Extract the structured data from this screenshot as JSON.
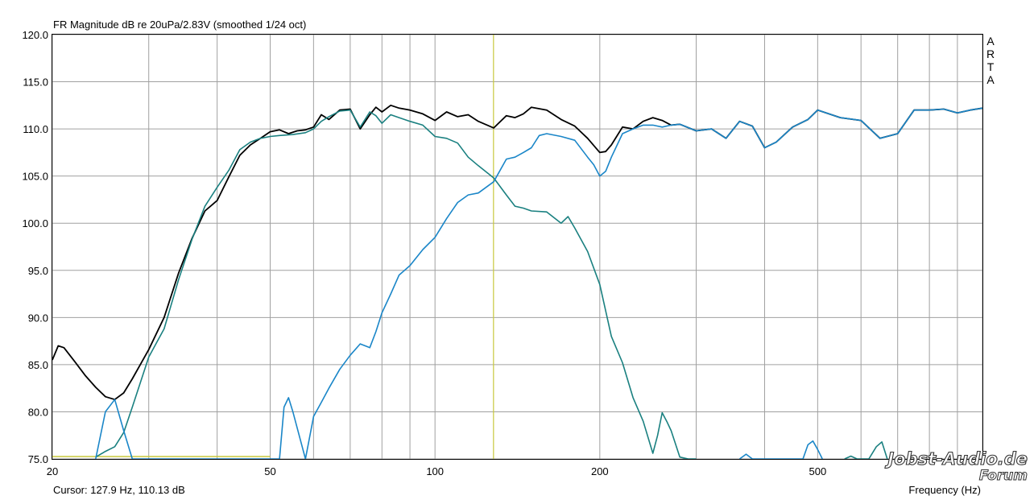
{
  "header": {
    "title": "FR Magnitude dB re 20uPa/2.83V (smoothed 1/24 oct)"
  },
  "footer": {
    "cursor_readout": "Cursor: 127.9 Hz, 110.13 dB",
    "xlabel": "Frequency (Hz)"
  },
  "brand": {
    "letters": [
      "A",
      "R",
      "T",
      "A"
    ]
  },
  "watermark": {
    "line1": "Jobst-Audio.de",
    "line2": "Forum"
  },
  "chart_data": {
    "type": "line",
    "title": "FR Magnitude dB re 20uPa/2.83V (smoothed 1/24 oct)",
    "xlabel": "Frequency (Hz)",
    "ylabel": "",
    "x_scale": "log",
    "xlim": [
      20,
      1000
    ],
    "ylim": [
      75,
      120
    ],
    "grid": true,
    "y_ticks": [
      75.0,
      80.0,
      85.0,
      90.0,
      95.0,
      100.0,
      105.0,
      110.0,
      115.0,
      120.0
    ],
    "y_tick_labels": [
      "75.0",
      "80.0",
      "85.0",
      "90.0",
      "95.0",
      "100.0",
      "105.0",
      "110.0",
      "115.0",
      "120.0"
    ],
    "x_ticks": [
      20,
      50,
      100,
      200,
      500
    ],
    "x_tick_labels": [
      "20",
      "50",
      "100",
      "200",
      "500"
    ],
    "cursor": {
      "frequency_hz": 127.9,
      "level_db": 110.13
    },
    "colors": {
      "sum": "#000000",
      "low": "#1a8080",
      "high": "#1a86c8",
      "cursor": "#c8c83c"
    },
    "series": [
      {
        "color": "#000000",
        "x": [
          20,
          20.5,
          21,
          22,
          23,
          24,
          25,
          26,
          27,
          28,
          30,
          32,
          34,
          36,
          38,
          40,
          42,
          44,
          46,
          48,
          50,
          52,
          54,
          56,
          58,
          60,
          62,
          64,
          67,
          70,
          73,
          76,
          78,
          80,
          83,
          86,
          90,
          95,
          100,
          105,
          110,
          115,
          120,
          128,
          135,
          140,
          145,
          150,
          160,
          170,
          180,
          190,
          200,
          205,
          210,
          220,
          230,
          240,
          250,
          260,
          270,
          280,
          300,
          320,
          340,
          360,
          380,
          400,
          420,
          450,
          480,
          500,
          550,
          600,
          650,
          700,
          750,
          800,
          850,
          900,
          950,
          1000
        ],
        "y": [
          85.5,
          87.0,
          86.8,
          85.3,
          83.8,
          82.6,
          81.6,
          81.3,
          82.0,
          83.5,
          86.6,
          90.0,
          94.7,
          98.4,
          101.3,
          102.4,
          104.9,
          107.2,
          108.3,
          109.0,
          109.7,
          109.9,
          109.5,
          109.8,
          109.9,
          110.2,
          111.5,
          111.0,
          112.0,
          112.1,
          110.0,
          111.5,
          112.3,
          111.8,
          112.5,
          112.2,
          112.0,
          111.6,
          110.9,
          111.8,
          111.3,
          111.5,
          110.8,
          110.1,
          111.4,
          111.2,
          111.6,
          112.3,
          112.0,
          111.0,
          110.3,
          109.0,
          107.5,
          107.6,
          108.3,
          110.2,
          110.0,
          110.8,
          111.2,
          110.9,
          110.4,
          110.5,
          109.8,
          110.0,
          109.0,
          110.8,
          110.3,
          108.0,
          108.6,
          110.2,
          111.0,
          112.0,
          111.2,
          110.9,
          109.0,
          109.5,
          112.0,
          112.0,
          112.1,
          111.7,
          112.0,
          112.2
        ]
      },
      {
        "color": "#1a8080",
        "x": [
          24,
          25,
          26,
          27,
          28,
          30,
          32,
          34,
          36,
          38,
          40,
          42,
          44,
          46,
          48,
          50,
          52,
          55,
          58,
          60,
          62,
          64,
          67,
          70,
          73,
          76,
          78,
          80,
          83,
          86,
          90,
          95,
          100,
          105,
          110,
          115,
          120,
          128,
          135,
          140,
          145,
          150,
          160,
          170,
          175,
          180,
          190,
          200,
          210,
          220,
          230,
          240,
          250,
          255,
          260,
          265,
          270,
          280,
          290,
          300
        ],
        "y": [
          75.2,
          75.8,
          76.3,
          77.8,
          80.5,
          85.8,
          88.8,
          94.0,
          98.3,
          101.8,
          103.8,
          105.6,
          107.8,
          108.6,
          109.0,
          109.2,
          109.3,
          109.4,
          109.6,
          110.0,
          110.8,
          111.3,
          111.9,
          112.0,
          110.2,
          111.8,
          111.4,
          110.6,
          111.5,
          111.2,
          110.8,
          110.4,
          109.2,
          109.0,
          108.5,
          107.0,
          106.1,
          104.8,
          103.0,
          101.8,
          101.6,
          101.3,
          101.2,
          100.0,
          100.7,
          99.5,
          97.0,
          93.5,
          88.0,
          85.2,
          81.5,
          79.0,
          75.6,
          77.5,
          79.9,
          79.0,
          78.0,
          75.2,
          75.0,
          75.0
        ]
      },
      {
        "color": "#1a86c8",
        "x": [
          24,
          25,
          26,
          27,
          28,
          52,
          53,
          54,
          55,
          58,
          60,
          62,
          64,
          67,
          70,
          73,
          76,
          78,
          80,
          83,
          86,
          90,
          95,
          100,
          105,
          110,
          115,
          120,
          128,
          135,
          140,
          145,
          150,
          155,
          160,
          170,
          180,
          190,
          195,
          200,
          205,
          210,
          220,
          230,
          240,
          250,
          260,
          270,
          280,
          300,
          320,
          340,
          360,
          380,
          400,
          420,
          450,
          480,
          500,
          550,
          600,
          650,
          700,
          750,
          800,
          850,
          900,
          950,
          1000
        ],
        "y": [
          75.0,
          80.0,
          81.3,
          78.0,
          75.0,
          75.0,
          80.5,
          81.5,
          80.0,
          75.0,
          79.5,
          81.0,
          82.5,
          84.5,
          86.0,
          87.2,
          86.8,
          88.5,
          90.5,
          92.5,
          94.5,
          95.5,
          97.2,
          98.5,
          100.5,
          102.2,
          103.0,
          103.2,
          104.4,
          106.8,
          107.0,
          107.5,
          108.0,
          109.3,
          109.5,
          109.2,
          108.8,
          107.0,
          106.2,
          105.0,
          105.5,
          107.0,
          109.5,
          110.0,
          110.4,
          110.4,
          110.2,
          110.4,
          110.5,
          109.8,
          110.0,
          109.0,
          110.8,
          110.3,
          108.0,
          108.6,
          110.2,
          111.0,
          112.0,
          111.2,
          110.9,
          109.0,
          109.5,
          112.0,
          112.0,
          112.1,
          111.7,
          112.0,
          112.2
        ]
      },
      {
        "color": "#1a86c8",
        "x": [
          360,
          370,
          380,
          470,
          480,
          490,
          500,
          510
        ],
        "y": [
          75.0,
          75.5,
          75.0,
          75.0,
          76.5,
          76.9,
          76.0,
          75.0
        ]
      },
      {
        "color": "#1a8080",
        "x": [
          560,
          575,
          590,
          620,
          640,
          655,
          670
        ],
        "y": [
          75.0,
          75.3,
          75.0,
          75.0,
          76.3,
          76.8,
          75.0
        ]
      }
    ]
  }
}
